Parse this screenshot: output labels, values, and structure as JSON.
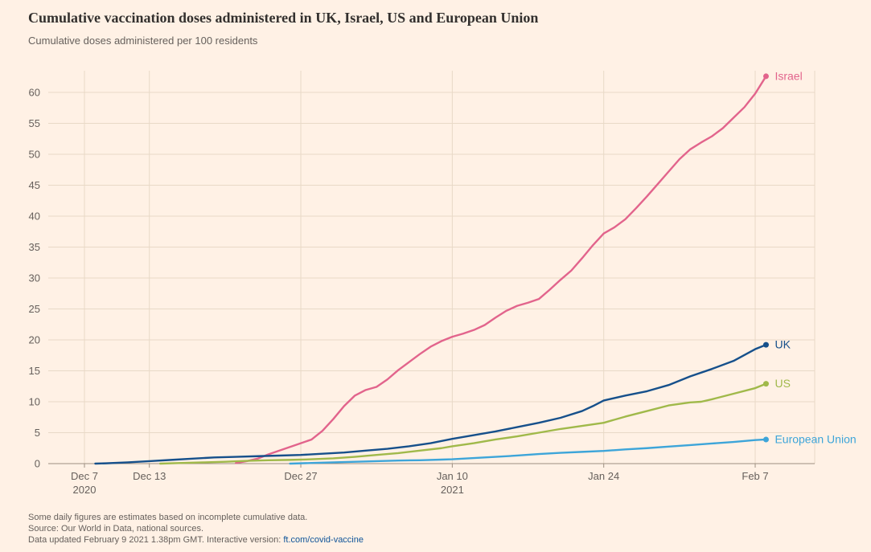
{
  "header": {
    "title": "Cumulative vaccination doses administered in UK, Israel, US and European Union",
    "subtitle": "Cumulative doses administered per 100 residents"
  },
  "chart_data": {
    "type": "line",
    "title": "Cumulative vaccination doses administered in UK, Israel, US and European Union",
    "ylabel": "Cumulative doses administered per 100 residents",
    "x_unit": "days since Dec 7 2020",
    "xlim": [
      0,
      67.5
    ],
    "ylim": [
      0,
      63.5
    ],
    "grid": true,
    "legend_position": "line-end-labels",
    "yticks": [
      0,
      5,
      10,
      15,
      20,
      25,
      30,
      35,
      40,
      45,
      50,
      55,
      60
    ],
    "xticks": [
      {
        "day": 0,
        "label": "Dec 7",
        "sublabel": "2020"
      },
      {
        "day": 6,
        "label": "Dec 13",
        "sublabel": ""
      },
      {
        "day": 20,
        "label": "Dec 27",
        "sublabel": ""
      },
      {
        "day": 34,
        "label": "Jan 10",
        "sublabel": "2021"
      },
      {
        "day": 48,
        "label": "Jan 24",
        "sublabel": ""
      },
      {
        "day": 62,
        "label": "Feb 7",
        "sublabel": ""
      }
    ],
    "extra_gridline_days": [
      67.5
    ],
    "series": [
      {
        "name": "Israel",
        "color": "#e2648c",
        "end_value": 62.6,
        "points": [
          [
            14,
            0.1
          ],
          [
            15,
            0.4
          ],
          [
            16,
            0.8
          ],
          [
            17,
            1.5
          ],
          [
            18,
            2.1
          ],
          [
            19,
            2.7
          ],
          [
            20,
            3.3
          ],
          [
            21,
            3.9
          ],
          [
            22,
            5.3
          ],
          [
            23,
            7.2
          ],
          [
            24,
            9.3
          ],
          [
            25,
            11.0
          ],
          [
            26,
            11.9
          ],
          [
            27,
            12.4
          ],
          [
            28,
            13.6
          ],
          [
            29,
            15.1
          ],
          [
            30,
            16.4
          ],
          [
            31,
            17.7
          ],
          [
            32,
            18.9
          ],
          [
            33,
            19.8
          ],
          [
            34,
            20.5
          ],
          [
            35,
            21.0
          ],
          [
            36,
            21.6
          ],
          [
            37,
            22.4
          ],
          [
            38,
            23.6
          ],
          [
            39,
            24.7
          ],
          [
            40,
            25.5
          ],
          [
            41,
            26.0
          ],
          [
            42,
            26.6
          ],
          [
            43,
            28.1
          ],
          [
            44,
            29.7
          ],
          [
            45,
            31.2
          ],
          [
            46,
            33.2
          ],
          [
            47,
            35.3
          ],
          [
            48,
            37.2
          ],
          [
            49,
            38.2
          ],
          [
            50,
            39.5
          ],
          [
            51,
            41.3
          ],
          [
            52,
            43.2
          ],
          [
            53,
            45.2
          ],
          [
            54,
            47.2
          ],
          [
            55,
            49.2
          ],
          [
            56,
            50.8
          ],
          [
            57,
            51.9
          ],
          [
            58,
            52.9
          ],
          [
            59,
            54.2
          ],
          [
            60,
            55.9
          ],
          [
            61,
            57.6
          ],
          [
            62,
            59.8
          ],
          [
            63,
            62.6
          ]
        ]
      },
      {
        "name": "UK",
        "color": "#16508b",
        "end_value": 19.2,
        "points": [
          [
            1,
            0.0
          ],
          [
            2,
            0.05
          ],
          [
            4,
            0.2
          ],
          [
            6,
            0.4
          ],
          [
            8,
            0.6
          ],
          [
            10,
            0.8
          ],
          [
            12,
            1.0
          ],
          [
            14,
            1.1
          ],
          [
            16,
            1.2
          ],
          [
            18,
            1.3
          ],
          [
            20,
            1.4
          ],
          [
            22,
            1.6
          ],
          [
            24,
            1.8
          ],
          [
            26,
            2.1
          ],
          [
            28,
            2.4
          ],
          [
            30,
            2.8
          ],
          [
            32,
            3.3
          ],
          [
            34,
            4.0
          ],
          [
            36,
            4.6
          ],
          [
            38,
            5.2
          ],
          [
            40,
            5.9
          ],
          [
            42,
            6.6
          ],
          [
            44,
            7.4
          ],
          [
            46,
            8.5
          ],
          [
            47,
            9.3
          ],
          [
            48,
            10.2
          ],
          [
            50,
            11.0
          ],
          [
            52,
            11.7
          ],
          [
            54,
            12.7
          ],
          [
            56,
            14.1
          ],
          [
            58,
            15.3
          ],
          [
            60,
            16.6
          ],
          [
            62,
            18.5
          ],
          [
            63,
            19.2
          ]
        ]
      },
      {
        "name": "US",
        "color": "#a0b94a",
        "end_value": 12.9,
        "points": [
          [
            7,
            0.0
          ],
          [
            9,
            0.1
          ],
          [
            11,
            0.2
          ],
          [
            13,
            0.3
          ],
          [
            15,
            0.45
          ],
          [
            17,
            0.55
          ],
          [
            19,
            0.6
          ],
          [
            21,
            0.7
          ],
          [
            23,
            0.85
          ],
          [
            25,
            1.1
          ],
          [
            27,
            1.4
          ],
          [
            29,
            1.7
          ],
          [
            31,
            2.1
          ],
          [
            33,
            2.5
          ],
          [
            34,
            2.8
          ],
          [
            36,
            3.3
          ],
          [
            38,
            3.9
          ],
          [
            40,
            4.4
          ],
          [
            42,
            5.0
          ],
          [
            44,
            5.6
          ],
          [
            46,
            6.1
          ],
          [
            48,
            6.6
          ],
          [
            50,
            7.6
          ],
          [
            52,
            8.5
          ],
          [
            54,
            9.4
          ],
          [
            56,
            9.9
          ],
          [
            57,
            10.0
          ],
          [
            58,
            10.4
          ],
          [
            60,
            11.3
          ],
          [
            62,
            12.2
          ],
          [
            63,
            12.9
          ]
        ]
      },
      {
        "name": "European Union",
        "color": "#3da5d9",
        "end_value": 3.9,
        "points": [
          [
            19,
            0.0
          ],
          [
            21,
            0.1
          ],
          [
            23,
            0.2
          ],
          [
            25,
            0.3
          ],
          [
            27,
            0.4
          ],
          [
            29,
            0.5
          ],
          [
            31,
            0.55
          ],
          [
            33,
            0.65
          ],
          [
            34,
            0.7
          ],
          [
            36,
            0.9
          ],
          [
            38,
            1.1
          ],
          [
            40,
            1.3
          ],
          [
            42,
            1.55
          ],
          [
            44,
            1.75
          ],
          [
            46,
            1.9
          ],
          [
            48,
            2.05
          ],
          [
            50,
            2.3
          ],
          [
            52,
            2.5
          ],
          [
            54,
            2.75
          ],
          [
            56,
            3.0
          ],
          [
            58,
            3.25
          ],
          [
            60,
            3.5
          ],
          [
            62,
            3.8
          ],
          [
            63,
            3.9
          ]
        ]
      }
    ]
  },
  "colors": {
    "background": "#fff1e5",
    "grid": "#e8d9c7",
    "baseline": "#9d9081",
    "axis_text": "#66605c",
    "title_text": "#33302e"
  },
  "footer": {
    "note": "Some daily figures are estimates based on incomplete cumulative data.",
    "source": "Source: Our World in Data, national sources.",
    "updated_prefix": "Data updated February 9 2021 1.38pm GMT. Interactive version: ",
    "link_label": "ft.com/covid-vaccine"
  }
}
